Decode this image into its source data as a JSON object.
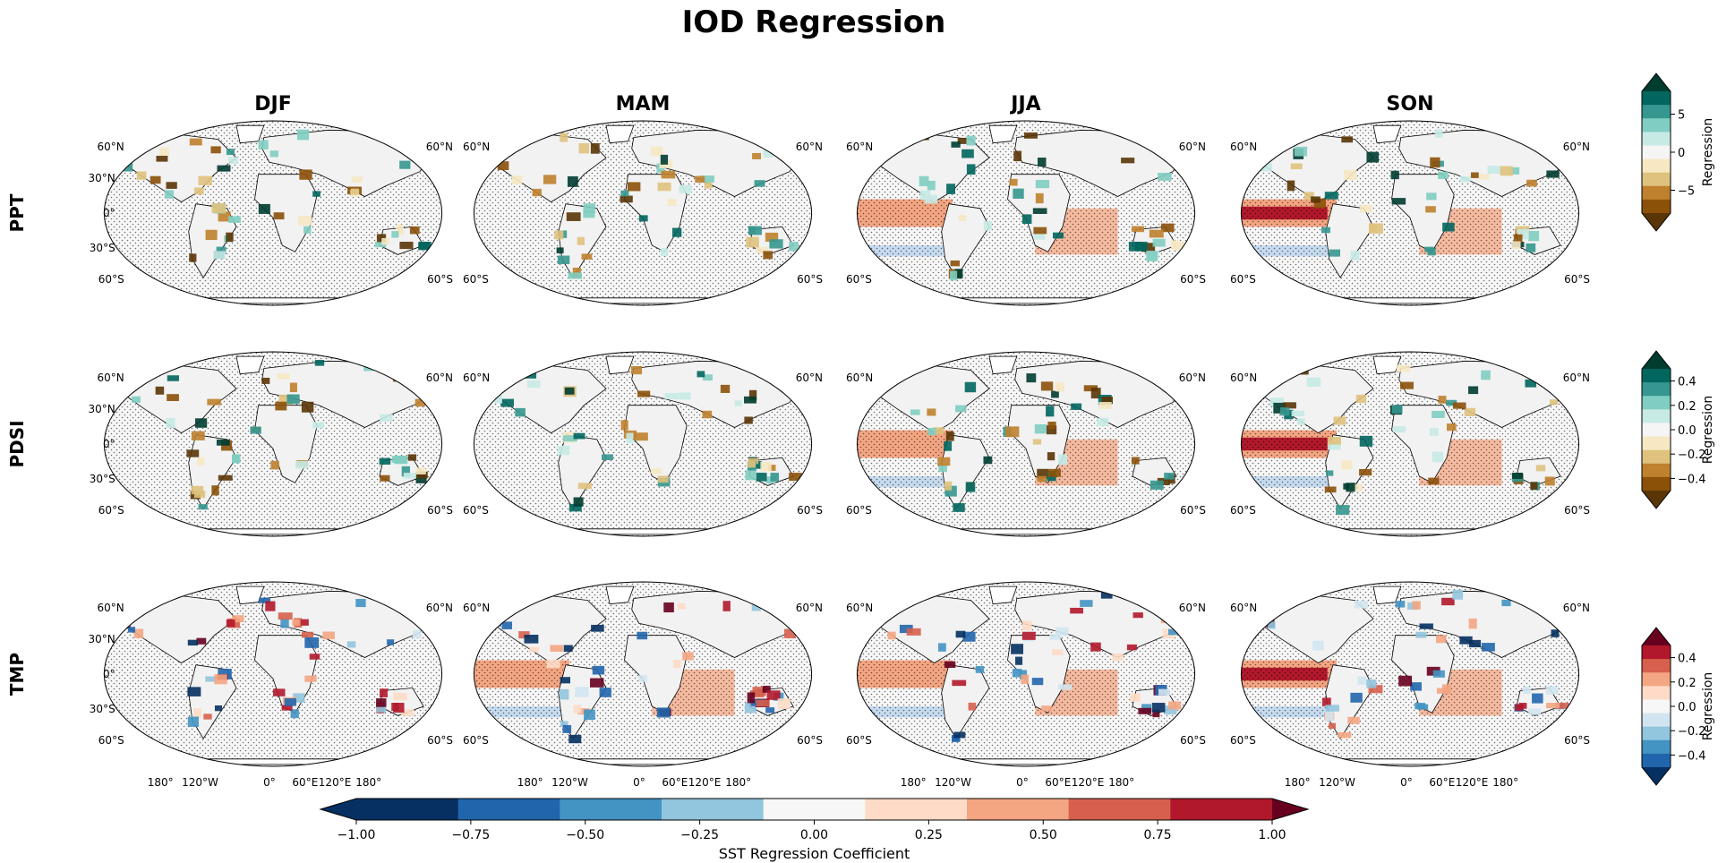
{
  "title": "IOD Regression",
  "chart_data": {
    "type": "heatmap",
    "title": "IOD Regression",
    "columns": [
      "DJF",
      "MAM",
      "JJA",
      "SON"
    ],
    "rows": [
      "PPT",
      "PDSI",
      "TMP"
    ],
    "map_lat_labels_left": [
      "60°N",
      "30°N",
      "0°",
      "30°S",
      "60°S"
    ],
    "map_lat_labels_right": [
      "60°N",
      "60°S"
    ],
    "lon_labels": [
      "180°",
      "120°W",
      "0°",
      "60°E",
      "120°E",
      "180°"
    ],
    "row_colorbars": [
      {
        "row": "PPT",
        "label": "Regression",
        "ticks": [
          5,
          0,
          -5
        ],
        "range": [
          -8,
          8
        ],
        "colormap": "BrBG",
        "colors": [
          "#5a3505",
          "#8c5109",
          "#bf812d",
          "#dfc27d",
          "#f6e8c3",
          "#f5f5f5",
          "#c7eae5",
          "#80cdc1",
          "#35978f",
          "#01665e",
          "#003c30"
        ]
      },
      {
        "row": "PDSI",
        "label": "Regression",
        "ticks": [
          0.4,
          0.2,
          0.0,
          -0.2,
          -0.4
        ],
        "range": [
          -0.5,
          0.5
        ],
        "colormap": "BrBG",
        "colors": [
          "#5a3505",
          "#8c5109",
          "#bf812d",
          "#dfc27d",
          "#f6e8c3",
          "#f5f5f5",
          "#c7eae5",
          "#80cdc1",
          "#35978f",
          "#01665e",
          "#003c30"
        ]
      },
      {
        "row": "TMP",
        "label": "Regression",
        "ticks": [
          0.4,
          0.2,
          0.0,
          -0.2,
          -0.4
        ],
        "range": [
          -0.5,
          0.5
        ],
        "colormap": "RdBu_r",
        "colors": [
          "#053061",
          "#2166ac",
          "#4393c3",
          "#92c5de",
          "#d1e5f0",
          "#f7f7f7",
          "#fddbc7",
          "#f4a582",
          "#d6604d",
          "#b2182b",
          "#67001f"
        ]
      }
    ],
    "sst_colorbar": {
      "label": "SST Regression Coefficient",
      "ticks": [
        -1.0,
        -0.75,
        -0.5,
        -0.25,
        0.0,
        0.25,
        0.5,
        0.75,
        1.0
      ],
      "tick_labels": [
        "−1.00",
        "−0.75",
        "−0.50",
        "−0.25",
        "0.00",
        "0.25",
        "0.50",
        "0.75",
        "1.00"
      ],
      "range": [
        -1.0,
        1.0
      ],
      "colors": [
        "#053061",
        "#2166ac",
        "#4393c3",
        "#92c5de",
        "#f7f7f7",
        "#fddbc7",
        "#f4a582",
        "#d6604d",
        "#67001f"
      ]
    },
    "colors": {
      "land_border": "#000000",
      "stipple": "#000000",
      "sst_warm": "#f4a582",
      "sst_strong": "#b2182b",
      "sst_cool": "#c6dbef"
    }
  }
}
